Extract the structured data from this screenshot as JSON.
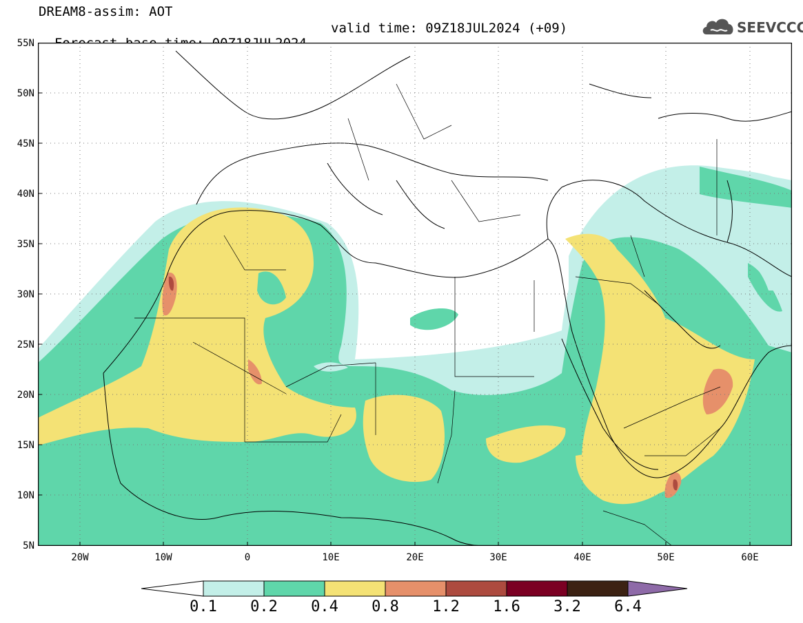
{
  "header": {
    "line1": "DREAM8-assim: AOT",
    "base_time": "Forecast base time: 00Z18JUL2024",
    "valid_time": "valid time: 09Z18JUL2024 (+09)"
  },
  "logo": {
    "text": "SEEVCCC",
    "icon": "cloud-icon"
  },
  "map": {
    "y_ticks": [
      "55N",
      "50N",
      "45N",
      "40N",
      "35N",
      "30N",
      "25N",
      "20N",
      "15N",
      "10N",
      "5N"
    ],
    "x_ticks": [
      "20W",
      "10W",
      "0",
      "10E",
      "20E",
      "30E",
      "40E",
      "50E",
      "60E"
    ],
    "lon_range": [
      -25,
      65
    ],
    "lat_range": [
      5,
      55
    ]
  },
  "colorbar": {
    "labels": [
      "0.1",
      "0.2",
      "0.4",
      "0.8",
      "1.2",
      "1.6",
      "3.2",
      "6.4"
    ],
    "colors": [
      "#ffffff",
      "#c3efe8",
      "#5fd6aa",
      "#f4e275",
      "#e6906a",
      "#ad4b3f",
      "#7b0023",
      "#3c2213",
      "#8e6aa8"
    ]
  }
}
